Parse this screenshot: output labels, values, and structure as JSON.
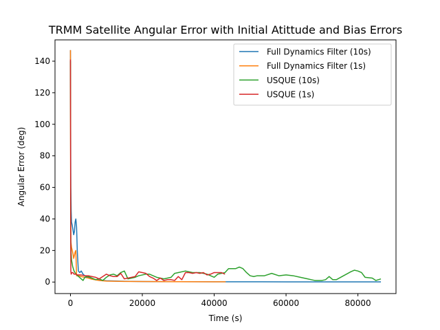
{
  "chart_data": {
    "type": "line",
    "title": "TRMM Satellite Angular Error with Initial Atittude and Bias Errors",
    "xlabel": "Time (s)",
    "ylabel": "Angular Error (deg)",
    "xlim": [
      -4300,
      90600
    ],
    "ylim": [
      -7.3,
      153.5
    ],
    "xticks": [
      0,
      20000,
      40000,
      60000,
      80000
    ],
    "xtick_labels": [
      "0",
      "20000",
      "40000",
      "60000",
      "80000"
    ],
    "yticks": [
      0,
      20,
      40,
      60,
      80,
      100,
      120,
      140
    ],
    "ytick_labels": [
      "0",
      "20",
      "40",
      "60",
      "80",
      "100",
      "120",
      "140"
    ],
    "grid": false,
    "legend_position": "upper-right",
    "series": [
      {
        "name": "Full Dynamics Filter (10s)",
        "color": "#1f77b4",
        "x": [
          0,
          100,
          200,
          300,
          500,
          700,
          900,
          1100,
          1300,
          1500,
          1700,
          1900,
          2200,
          2600,
          3000,
          3500,
          4000,
          4500,
          5000,
          6000,
          7000,
          8000,
          10000,
          15000,
          20000,
          30000,
          40000,
          50000,
          60000,
          70000,
          80000,
          86400
        ],
        "y": [
          147,
          60,
          45,
          38,
          36,
          33,
          30,
          32,
          38,
          40,
          35,
          20,
          7,
          6,
          7,
          5,
          4,
          3.5,
          3,
          2,
          1.6,
          1.2,
          0.8,
          0.5,
          0.3,
          0.2,
          0.15,
          0.15,
          0.12,
          0.12,
          0.1,
          0.1
        ]
      },
      {
        "name": "Full Dynamics Filter (1s)",
        "color": "#ff7f0e",
        "x": [
          0,
          50,
          100,
          200,
          300,
          500,
          700,
          900,
          1100,
          1300,
          1500,
          1700,
          2000,
          2500,
          3000,
          4000,
          5000,
          6000,
          8000,
          10000,
          15000,
          20000,
          30000,
          40000,
          43200
        ],
        "y": [
          147,
          40,
          26,
          24,
          22,
          20,
          18,
          15,
          17,
          19,
          20,
          4,
          4,
          3.8,
          3.5,
          3,
          2.5,
          1.8,
          1,
          0.6,
          0.4,
          0.3,
          0.2,
          0.15,
          0.15
        ]
      },
      {
        "name": "USQUE (10s)",
        "color": "#2ca02c",
        "x": [
          0,
          100,
          300,
          600,
          1000,
          1500,
          2000,
          2500,
          3000,
          3500,
          4000,
          5000,
          6000,
          7000,
          8000,
          9000,
          10000,
          11000,
          12000,
          13000,
          14000,
          15000,
          16000,
          17000,
          18000,
          19000,
          20000,
          21000,
          22000,
          23000,
          24000,
          25000,
          26000,
          27000,
          28000,
          29000,
          30000,
          32000,
          34000,
          36000,
          38000,
          39000,
          40000,
          41000,
          42000,
          43000,
          44000,
          45000,
          46000,
          47000,
          48000,
          49000,
          50000,
          51000,
          52000,
          54000,
          56000,
          58000,
          60000,
          62000,
          64000,
          66000,
          67000,
          68000,
          70000,
          71000,
          72000,
          73000,
          74000,
          76000,
          78000,
          79000,
          80000,
          81000,
          82000,
          84000,
          85000,
          86400
        ],
        "y": [
          140,
          22,
          14,
          10,
          7,
          5,
          4,
          3,
          2,
          1,
          3,
          3.5,
          2.5,
          1.5,
          2,
          1,
          3,
          4.5,
          5,
          4,
          6,
          7,
          2,
          2.5,
          3,
          4,
          4.5,
          5,
          5,
          4,
          3,
          2.5,
          2,
          2.5,
          3,
          5.5,
          6,
          7,
          6,
          6,
          5,
          4,
          3,
          5,
          5.5,
          6,
          8.5,
          8.5,
          8.5,
          9.5,
          8.5,
          6,
          4,
          3.5,
          4,
          4,
          5.5,
          4,
          4.5,
          4,
          3,
          2,
          1.5,
          1,
          1,
          1.5,
          3.5,
          1.5,
          1.5,
          4,
          6.5,
          7.5,
          7,
          6,
          3,
          2.5,
          1,
          2
        ]
      },
      {
        "name": "USQUE (1s)",
        "color": "#d62728",
        "x": [
          0,
          100,
          200,
          400,
          700,
          1000,
          1500,
          2000,
          3000,
          4000,
          5000,
          6000,
          7000,
          8000,
          9000,
          10000,
          11000,
          12000,
          13000,
          14000,
          15000,
          16000,
          17000,
          18000,
          19000,
          20000,
          21000,
          22000,
          23000,
          24000,
          25000,
          26000,
          27000,
          28000,
          29000,
          30000,
          31000,
          32000,
          33000,
          34000,
          35000,
          36000,
          37000,
          38000,
          39000,
          40000,
          41000,
          42000,
          43000
        ],
        "y": [
          141,
          7,
          5,
          6,
          6,
          5,
          5,
          4.5,
          4.5,
          4,
          4,
          3.5,
          3,
          2,
          3.5,
          5,
          4,
          3.5,
          3.5,
          5.5,
          2,
          2.5,
          3,
          3.5,
          6.5,
          6,
          5.5,
          3.5,
          2.5,
          1,
          2.5,
          1,
          1.5,
          1.5,
          1,
          3.5,
          1.5,
          6,
          6,
          5.5,
          6,
          5.5,
          6,
          4.5,
          5,
          6,
          6,
          6,
          5
        ]
      }
    ]
  }
}
